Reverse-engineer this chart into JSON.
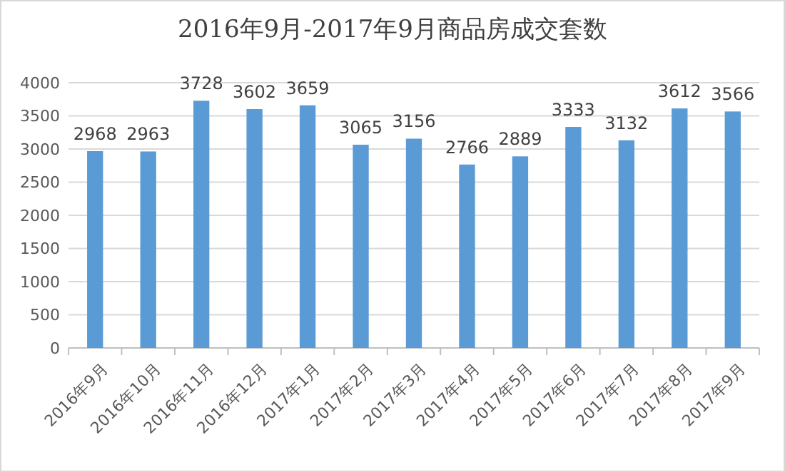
{
  "chart_data": {
    "type": "bar",
    "title": "2016年9月-2017年9月商品房成交套数",
    "categories": [
      "2016年9月",
      "2016年10月",
      "2016年11月",
      "2016年12月",
      "2017年1月",
      "2017年2月",
      "2017年3月",
      "2017年4月",
      "2017年5月",
      "2017年6月",
      "2017年7月",
      "2017年8月",
      "2017年9月"
    ],
    "values": [
      2968,
      2963,
      3728,
      3602,
      3659,
      3065,
      3156,
      2766,
      2889,
      3333,
      3132,
      3612,
      3566
    ],
    "color": "#5b9bd5",
    "ylim": [
      0,
      4000
    ],
    "yticks": [
      0,
      500,
      1000,
      1500,
      2000,
      2500,
      3000,
      3500,
      4000
    ],
    "grid": "y",
    "data_labels": true
  }
}
